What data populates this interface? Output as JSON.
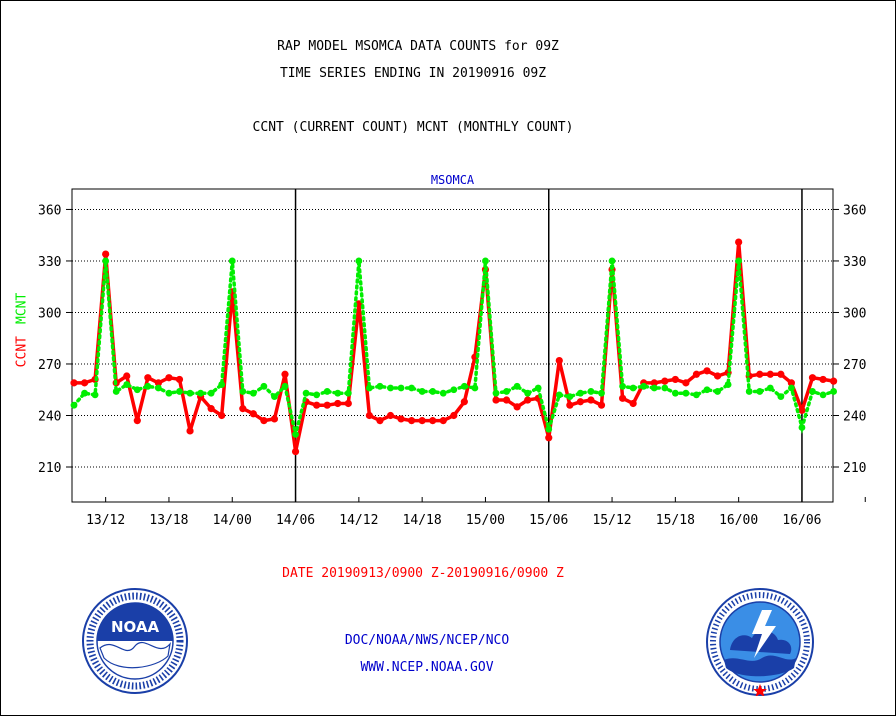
{
  "titles": {
    "line1": "RAP MODEL MSOMCA DATA COUNTS for 09Z",
    "line2": "TIME SERIES ENDING IN 20190916 09Z",
    "line3": "CCNT (CURRENT COUNT) MCNT (MONTHLY COUNT)"
  },
  "date_range": "DATE 20190913/0900 Z-20190916/0900 Z",
  "footer": {
    "org": "DOC/NOAA/NWS/NCEP/NCO",
    "url": "WWW.NCEP.NOAA.GOV"
  },
  "logos": {
    "left": {
      "name": "noaa-logo",
      "label": "NOAA",
      "ring_text": "NATIONAL OCEANIC AND ATMOSPHERIC ADMINISTRATION · U.S. DEPARTMENT OF COMMERCE"
    },
    "right": {
      "name": "nws-logo",
      "ring_text": "NATIONAL WEATHER SERVICE"
    }
  },
  "chart_data": {
    "type": "line",
    "title": "MSOMCA",
    "ylabel_parts": [
      {
        "text": "CCNT",
        "color": "#ff0000"
      },
      {
        "text": "MCNT",
        "color": "#00ee00"
      }
    ],
    "ylim": [
      190,
      370
    ],
    "yticks": [
      210,
      240,
      270,
      300,
      330,
      360
    ],
    "ytick_labels": [
      "210",
      "240",
      "270",
      "300",
      "330",
      "360"
    ],
    "xlim": [
      0,
      79
    ],
    "xticks": [
      3,
      9,
      15,
      21,
      27,
      33,
      39,
      45,
      51,
      57,
      63,
      69,
      75
    ],
    "xtick_labels": [
      "13/12",
      "13/18",
      "14/00",
      "14/06",
      "14/12",
      "14/18",
      "15/00",
      "15/06",
      "15/12",
      "15/18",
      "16/00",
      "16/06",
      ""
    ],
    "day_boundaries": [
      21,
      45,
      69
    ],
    "grid": true,
    "x_step_hours": 1,
    "series": [
      {
        "name": "CCNT",
        "color": "#ff0000",
        "values": [
          259,
          259,
          261,
          334,
          259,
          263,
          237,
          262,
          259,
          262,
          261,
          231,
          251,
          244,
          240,
          312,
          244,
          241,
          237,
          238,
          264,
          219,
          248,
          246,
          246,
          247,
          247,
          305,
          240,
          237,
          240,
          238,
          237,
          237,
          237,
          237,
          240,
          248,
          274,
          325,
          249,
          249,
          245,
          249,
          250,
          227,
          272,
          246,
          248,
          249,
          246,
          325,
          250,
          247,
          259,
          259,
          260,
          261,
          259,
          264,
          266,
          263,
          265,
          341,
          263,
          264,
          264,
          264,
          259,
          243,
          262,
          261,
          260
        ]
      },
      {
        "name": "MCNT",
        "color": "#00ee00",
        "values": [
          246,
          253,
          252,
          330,
          254,
          258,
          255,
          257,
          256,
          253,
          254,
          253,
          253,
          253,
          258,
          330,
          254,
          253,
          257,
          251,
          257,
          229,
          253,
          252,
          254,
          253,
          253,
          330,
          256,
          257,
          256,
          256,
          256,
          254,
          254,
          253,
          255,
          257,
          256,
          330,
          253,
          254,
          257,
          253,
          256,
          232,
          252,
          251,
          253,
          254,
          253,
          330,
          257,
          256,
          257,
          256,
          256,
          253,
          253,
          252,
          255,
          254,
          258,
          330,
          254,
          254,
          256,
          251,
          256,
          233,
          254,
          252,
          254
        ]
      }
    ]
  }
}
